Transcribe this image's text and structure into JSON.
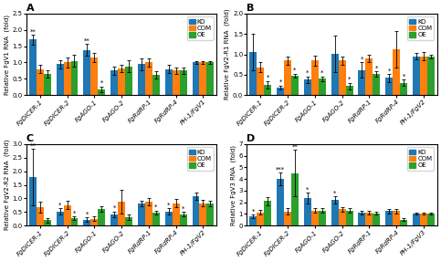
{
  "chart_data": [
    {
      "type": "bar",
      "title": "A",
      "y_label": "Relative FgV1 RNA  (fold)",
      "categories": [
        "FgDICER-1",
        "FgDICER-2",
        "FgAGO-1",
        "FgAGO-2",
        "FgRdRP-1",
        "FgRdRP-4",
        "PH-1/FgV1"
      ],
      "ylim": [
        0,
        2.5
      ],
      "yticks": [
        0.0,
        0.5,
        1.0,
        1.5,
        2.0,
        2.5
      ],
      "legend": "upper right",
      "series": [
        {
          "name": "KO",
          "values": [
            1.7,
            0.95,
            1.38,
            0.75,
            0.95,
            0.8,
            1.0
          ],
          "errors": [
            0.15,
            0.12,
            0.18,
            0.12,
            0.18,
            0.12,
            0.05
          ],
          "annotations": [
            "**",
            null,
            "**",
            null,
            null,
            null,
            null
          ]
        },
        {
          "name": "COM",
          "values": [
            0.8,
            1.0,
            1.15,
            0.82,
            1.0,
            0.75,
            1.0
          ],
          "errors": [
            0.12,
            0.15,
            0.15,
            0.12,
            0.12,
            0.1,
            0.05
          ]
        },
        {
          "name": "OE",
          "values": [
            0.65,
            1.05,
            0.18,
            0.88,
            0.62,
            0.75,
            1.0
          ],
          "errors": [
            0.1,
            0.18,
            0.08,
            0.18,
            0.1,
            0.1,
            0.05
          ],
          "annotations": [
            null,
            null,
            "*",
            null,
            null,
            null,
            null
          ]
        }
      ]
    },
    {
      "type": "bar",
      "title": "B",
      "y_label": "Relative FgV2-R1 RNA  (fold)",
      "categories": [
        "FgDICER-1",
        "FgDICER-2",
        "FgAGO-1",
        "FgAGO-2",
        "FgRdRP-1",
        "FgRdRP-4",
        "PH-1/FgV2"
      ],
      "ylim": [
        0,
        2.0
      ],
      "yticks": [
        0.0,
        0.5,
        1.0,
        1.5,
        2.0
      ],
      "legend": "upper right",
      "series": [
        {
          "name": "KO",
          "values": [
            1.05,
            0.18,
            0.38,
            1.02,
            0.62,
            0.42,
            0.95
          ],
          "errors": [
            0.45,
            0.05,
            0.08,
            0.45,
            0.18,
            0.1,
            0.08
          ],
          "annotations": [
            null,
            "*",
            "*",
            null,
            "*",
            "*",
            null
          ]
        },
        {
          "name": "COM",
          "values": [
            0.68,
            0.85,
            0.85,
            0.85,
            0.9,
            1.12,
            0.95
          ],
          "errors": [
            0.12,
            0.1,
            0.12,
            0.1,
            0.1,
            0.45,
            0.1
          ]
        },
        {
          "name": "OE",
          "values": [
            0.25,
            0.48,
            0.4,
            0.22,
            0.52,
            0.3,
            0.95
          ],
          "errors": [
            0.1,
            0.05,
            0.06,
            0.08,
            0.06,
            0.08,
            0.05
          ],
          "annotations": [
            "*",
            "*",
            "*",
            "*",
            "*",
            "*",
            null
          ]
        }
      ]
    },
    {
      "type": "bar",
      "title": "C",
      "y_label": "Relative FgV2-R2 RNA  (fold)",
      "categories": [
        "FgDICER-1",
        "FgDICER-2",
        "FgAGO-1",
        "FgAGO-2",
        "FgRdRP-1",
        "FgRdRP-4",
        "PH-1/FgV2"
      ],
      "ylim": [
        0,
        3.0
      ],
      "yticks": [
        0.0,
        0.5,
        1.0,
        1.5,
        2.0,
        2.5,
        3.0
      ],
      "legend": "upper right",
      "series": [
        {
          "name": "KO",
          "values": [
            1.78,
            0.52,
            0.22,
            0.42,
            0.82,
            0.52,
            1.08
          ],
          "errors": [
            1.05,
            0.12,
            0.08,
            0.1,
            0.1,
            0.12,
            0.12
          ],
          "annotations": [
            "**",
            "*",
            "*",
            "*",
            null,
            "*",
            null
          ]
        },
        {
          "name": "COM",
          "values": [
            0.68,
            0.75,
            0.25,
            0.88,
            0.88,
            0.82,
            0.82
          ],
          "errors": [
            0.2,
            0.15,
            0.08,
            0.45,
            0.15,
            0.15,
            0.12
          ]
        },
        {
          "name": "OE",
          "values": [
            0.2,
            0.28,
            0.6,
            0.3,
            0.48,
            0.42,
            0.82
          ],
          "errors": [
            0.08,
            0.06,
            0.1,
            0.1,
            0.08,
            0.08,
            0.1
          ],
          "annotations": [
            null,
            "*",
            null,
            null,
            "*",
            "*",
            null
          ]
        }
      ]
    },
    {
      "type": "bar",
      "title": "D",
      "y_label": "Relative FgV3 RNA  (fold)",
      "categories": [
        "FgDICER-1",
        "FgDICER-2",
        "FgAGO-1",
        "FgAGO-2",
        "FgRdRP-1",
        "FgRdRP-4",
        "PH-1/FgV3"
      ],
      "ylim": [
        0,
        7.0
      ],
      "yticks": [
        0,
        1,
        2,
        3,
        4,
        5,
        6,
        7
      ],
      "legend": "upper right",
      "series": [
        {
          "name": "KO",
          "values": [
            0.8,
            4.0,
            2.35,
            2.2,
            1.12,
            1.25,
            1.0
          ],
          "errors": [
            0.15,
            0.55,
            0.45,
            0.3,
            0.15,
            0.2,
            0.08
          ],
          "annotations": [
            "*",
            "***",
            "*",
            "*",
            null,
            null,
            null
          ]
        },
        {
          "name": "COM",
          "values": [
            1.12,
            1.22,
            1.3,
            1.4,
            1.12,
            1.25,
            1.0
          ],
          "errors": [
            0.2,
            0.25,
            0.18,
            0.2,
            0.15,
            0.18,
            0.08
          ]
        },
        {
          "name": "OE",
          "values": [
            2.1,
            4.5,
            1.3,
            1.3,
            1.05,
            0.5,
            1.0
          ],
          "errors": [
            0.35,
            2.0,
            0.2,
            0.2,
            0.12,
            0.12,
            0.08
          ],
          "annotations": [
            null,
            "**",
            null,
            null,
            null,
            null,
            null
          ]
        }
      ]
    }
  ]
}
